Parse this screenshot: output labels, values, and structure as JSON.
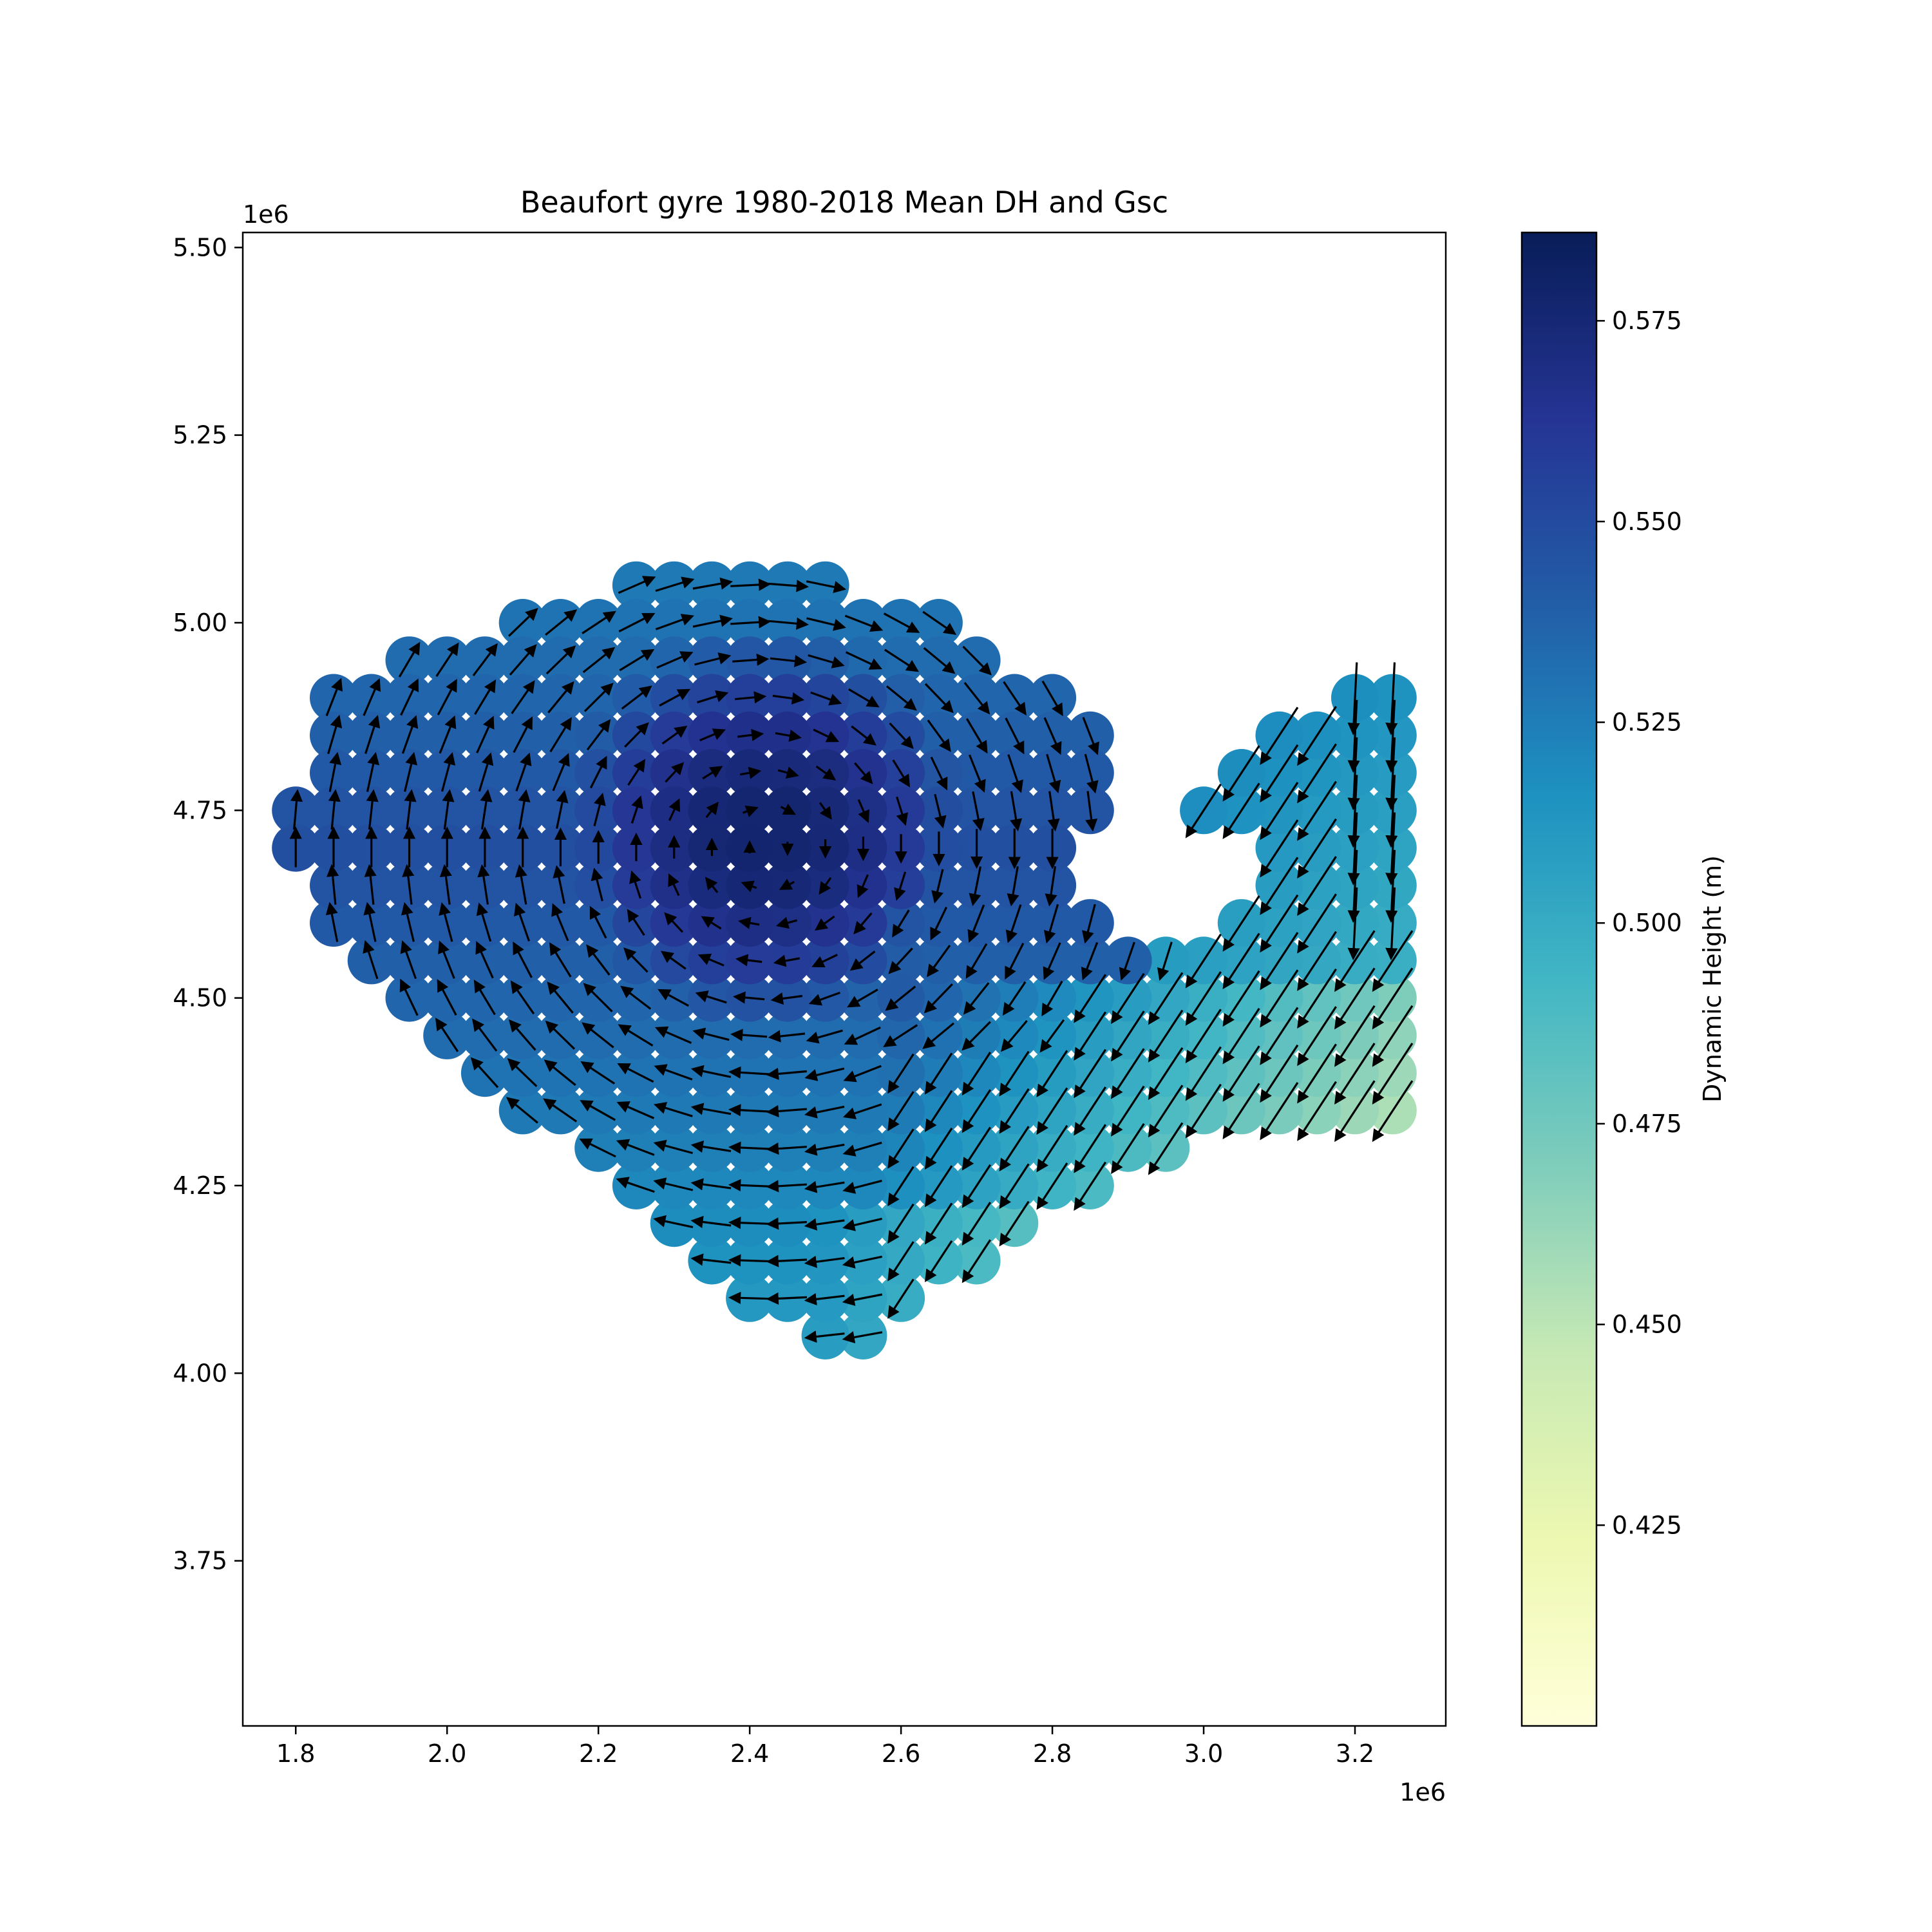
{
  "chart_data": {
    "type": "scatter",
    "title": "Beaufort gyre 1980-2018 Mean DH and Gsc",
    "xlabel": "",
    "ylabel": "",
    "x_offset_label": "1e6",
    "y_offset_label": "1e6",
    "xlim": [
      1.73,
      3.32
    ],
    "ylim": [
      3.53,
      5.52
    ],
    "x_ticks": [
      1.8,
      2.0,
      2.2,
      2.4,
      2.6,
      2.8,
      3.0,
      3.2
    ],
    "x_tick_labels": [
      "1.8",
      "2.0",
      "2.2",
      "2.4",
      "2.6",
      "2.8",
      "3.0",
      "3.2"
    ],
    "y_ticks": [
      3.75,
      4.0,
      4.25,
      4.5,
      4.75,
      5.0,
      5.25,
      5.5
    ],
    "y_tick_labels": [
      "3.75",
      "4.00",
      "4.25",
      "4.50",
      "4.75",
      "5.00",
      "5.25",
      "5.50"
    ],
    "grid": false,
    "colorbar": {
      "label": "Dynamic Height (m)",
      "range": [
        0.4,
        0.586
      ],
      "ticks": [
        0.425,
        0.45,
        0.475,
        0.5,
        0.525,
        0.55,
        0.575
      ],
      "tick_labels": [
        "0.425",
        "0.450",
        "0.475",
        "0.500",
        "0.525",
        "0.550",
        "0.575"
      ],
      "colormap": "YlGnBu",
      "stops": [
        "#ffffd9",
        "#edf8b1",
        "#c7e9b4",
        "#7fcdbb",
        "#41b6c4",
        "#1d91c0",
        "#225ea8",
        "#253494",
        "#081d58"
      ]
    },
    "points_description": "Circles show mean dynamic height (m) at grid points; arrows show mean geostrophic current (Gsc) direction and magnitude.",
    "series": [
      {
        "x": [
          2.25,
          2.3,
          2.35,
          2.4,
          2.45,
          2.5,
          2.1,
          2.15,
          2.2,
          2.25,
          2.3,
          2.35,
          2.4,
          2.45,
          2.5,
          2.55,
          2.6,
          2.65,
          1.95,
          2.0,
          2.05,
          2.1,
          2.15,
          2.2,
          2.25,
          2.3,
          2.35,
          2.4,
          2.45,
          2.5,
          2.55,
          2.6,
          2.65,
          2.7,
          1.85,
          1.9,
          1.95,
          2.0,
          2.05,
          2.1,
          2.15,
          2.2,
          2.25,
          2.3,
          2.35,
          2.4,
          2.45,
          2.5,
          2.55,
          2.6,
          2.65,
          2.7,
          2.75,
          2.8,
          3.2,
          3.25,
          1.85,
          1.9,
          1.95,
          2.0,
          2.05,
          2.1,
          2.15,
          2.2,
          2.25,
          2.3,
          2.35,
          2.4,
          2.45,
          2.5,
          2.55,
          2.6,
          2.65,
          2.7,
          2.75,
          2.8,
          2.85,
          3.1,
          3.15,
          3.2,
          3.25,
          1.85,
          1.9,
          1.95,
          2.0,
          2.05,
          2.1,
          2.15,
          2.2,
          2.25,
          2.3,
          2.35,
          2.4,
          2.45,
          2.5,
          2.55,
          2.6,
          2.65,
          2.7,
          2.75,
          2.8,
          2.85,
          3.05,
          3.1,
          3.15,
          3.2,
          3.25,
          1.8,
          1.85,
          1.9,
          1.95,
          2.0,
          2.05,
          2.1,
          2.15,
          2.2,
          2.25,
          2.3,
          2.35,
          2.4,
          2.45,
          2.5,
          2.55,
          2.6,
          2.65,
          2.7,
          2.75,
          2.8,
          2.85,
          3.0,
          3.05,
          3.1,
          3.15,
          3.2,
          3.25,
          1.8,
          1.85,
          1.9,
          1.95,
          2.0,
          2.05,
          2.1,
          2.15,
          2.2,
          2.25,
          2.3,
          2.35,
          2.4,
          2.45,
          2.5,
          2.55,
          2.6,
          2.65,
          2.7,
          2.75,
          2.8,
          3.1,
          3.15,
          3.2,
          3.25,
          1.85,
          1.9,
          1.95,
          2.0,
          2.05,
          2.1,
          2.15,
          2.2,
          2.25,
          2.3,
          2.35,
          2.4,
          2.45,
          2.5,
          2.55,
          2.6,
          2.65,
          2.7,
          2.75,
          2.8,
          3.1,
          3.15,
          3.2,
          3.25,
          1.85,
          1.9,
          1.95,
          2.0,
          2.05,
          2.1,
          2.15,
          2.2,
          2.25,
          2.3,
          2.35,
          2.4,
          2.45,
          2.5,
          2.55,
          2.6,
          2.65,
          2.7,
          2.75,
          2.8,
          2.85,
          3.05,
          3.1,
          3.15,
          3.2,
          3.25,
          1.9,
          1.95,
          2.0,
          2.05,
          2.1,
          2.15,
          2.2,
          2.25,
          2.3,
          2.35,
          2.4,
          2.45,
          2.5,
          2.55,
          2.6,
          2.65,
          2.7,
          2.75,
          2.8,
          2.85,
          2.9,
          2.95,
          3.0,
          3.05,
          3.1,
          3.15,
          3.2,
          3.25,
          1.95,
          2.0,
          2.05,
          2.1,
          2.15,
          2.2,
          2.25,
          2.3,
          2.35,
          2.4,
          2.45,
          2.5,
          2.55,
          2.6,
          2.65,
          2.7,
          2.75,
          2.8,
          2.85,
          2.9,
          2.95,
          3.0,
          3.05,
          3.1,
          3.15,
          3.2,
          3.25,
          2.0,
          2.05,
          2.1,
          2.15,
          2.2,
          2.25,
          2.3,
          2.35,
          2.4,
          2.45,
          2.5,
          2.55,
          2.6,
          2.65,
          2.7,
          2.75,
          2.8,
          2.85,
          2.9,
          2.95,
          3.0,
          3.05,
          3.1,
          3.15,
          3.2,
          3.25,
          2.05,
          2.1,
          2.15,
          2.2,
          2.25,
          2.3,
          2.35,
          2.4,
          2.45,
          2.5,
          2.55,
          2.6,
          2.65,
          2.7,
          2.75,
          2.8,
          2.85,
          2.9,
          2.95,
          3.0,
          3.05,
          3.1,
          3.15,
          3.2,
          3.25,
          2.1,
          2.15,
          2.2,
          2.25,
          2.3,
          2.35,
          2.4,
          2.45,
          2.5,
          2.55,
          2.6,
          2.65,
          2.7,
          2.75,
          2.8,
          2.85,
          2.9,
          2.95,
          3.0,
          3.05,
          3.1,
          3.15,
          3.2,
          3.25,
          2.2,
          2.25,
          2.3,
          2.35,
          2.4,
          2.45,
          2.5,
          2.55,
          2.6,
          2.65,
          2.7,
          2.75,
          2.8,
          2.85,
          2.9,
          2.95,
          2.25,
          2.3,
          2.35,
          2.4,
          2.45,
          2.5,
          2.55,
          2.6,
          2.65,
          2.7,
          2.75,
          2.8,
          2.85,
          2.3,
          2.35,
          2.4,
          2.45,
          2.5,
          2.55,
          2.6,
          2.65,
          2.7,
          2.75,
          2.35,
          2.4,
          2.45,
          2.5,
          2.55,
          2.6,
          2.65,
          2.7,
          2.4,
          2.45,
          2.5,
          2.55,
          2.6,
          2.5,
          2.55
        ],
        "y": [
          5.05,
          5.05,
          5.05,
          5.05,
          5.05,
          5.05,
          5.0,
          5.0,
          5.0,
          5.0,
          5.0,
          5.0,
          5.0,
          5.0,
          5.0,
          5.0,
          5.0,
          5.0,
          4.95,
          4.95,
          4.95,
          4.95,
          4.95,
          4.95,
          4.95,
          4.95,
          4.95,
          4.95,
          4.95,
          4.95,
          4.95,
          4.95,
          4.95,
          4.95,
          4.9,
          4.9,
          4.9,
          4.9,
          4.9,
          4.9,
          4.9,
          4.9,
          4.9,
          4.9,
          4.9,
          4.9,
          4.9,
          4.9,
          4.9,
          4.9,
          4.9,
          4.9,
          4.9,
          4.9,
          4.9,
          4.9,
          4.85,
          4.85,
          4.85,
          4.85,
          4.85,
          4.85,
          4.85,
          4.85,
          4.85,
          4.85,
          4.85,
          4.85,
          4.85,
          4.85,
          4.85,
          4.85,
          4.85,
          4.85,
          4.85,
          4.85,
          4.85,
          4.85,
          4.85,
          4.85,
          4.85,
          4.8,
          4.8,
          4.8,
          4.8,
          4.8,
          4.8,
          4.8,
          4.8,
          4.8,
          4.8,
          4.8,
          4.8,
          4.8,
          4.8,
          4.8,
          4.8,
          4.8,
          4.8,
          4.8,
          4.8,
          4.8,
          4.8,
          4.8,
          4.8,
          4.8,
          4.8,
          4.75,
          4.75,
          4.75,
          4.75,
          4.75,
          4.75,
          4.75,
          4.75,
          4.75,
          4.75,
          4.75,
          4.75,
          4.75,
          4.75,
          4.75,
          4.75,
          4.75,
          4.75,
          4.75,
          4.75,
          4.75,
          4.75,
          4.75,
          4.75,
          4.75,
          4.75,
          4.75,
          4.75,
          4.7,
          4.7,
          4.7,
          4.7,
          4.7,
          4.7,
          4.7,
          4.7,
          4.7,
          4.7,
          4.7,
          4.7,
          4.7,
          4.7,
          4.7,
          4.7,
          4.7,
          4.7,
          4.7,
          4.7,
          4.7,
          4.7,
          4.7,
          4.7,
          4.7,
          4.65,
          4.65,
          4.65,
          4.65,
          4.65,
          4.65,
          4.65,
          4.65,
          4.65,
          4.65,
          4.65,
          4.65,
          4.65,
          4.65,
          4.65,
          4.65,
          4.65,
          4.65,
          4.65,
          4.65,
          4.65,
          4.65,
          4.65,
          4.65,
          4.6,
          4.6,
          4.6,
          4.6,
          4.6,
          4.6,
          4.6,
          4.6,
          4.6,
          4.6,
          4.6,
          4.6,
          4.6,
          4.6,
          4.6,
          4.6,
          4.6,
          4.6,
          4.6,
          4.6,
          4.6,
          4.6,
          4.6,
          4.6,
          4.6,
          4.6,
          4.55,
          4.55,
          4.55,
          4.55,
          4.55,
          4.55,
          4.55,
          4.55,
          4.55,
          4.55,
          4.55,
          4.55,
          4.55,
          4.55,
          4.55,
          4.55,
          4.55,
          4.55,
          4.55,
          4.55,
          4.55,
          4.55,
          4.55,
          4.55,
          4.55,
          4.55,
          4.55,
          4.55,
          4.5,
          4.5,
          4.5,
          4.5,
          4.5,
          4.5,
          4.5,
          4.5,
          4.5,
          4.5,
          4.5,
          4.5,
          4.5,
          4.5,
          4.5,
          4.5,
          4.5,
          4.5,
          4.5,
          4.5,
          4.5,
          4.5,
          4.5,
          4.5,
          4.5,
          4.5,
          4.5,
          4.45,
          4.45,
          4.45,
          4.45,
          4.45,
          4.45,
          4.45,
          4.45,
          4.45,
          4.45,
          4.45,
          4.45,
          4.45,
          4.45,
          4.45,
          4.45,
          4.45,
          4.45,
          4.45,
          4.45,
          4.45,
          4.45,
          4.45,
          4.45,
          4.45,
          4.45,
          4.4,
          4.4,
          4.4,
          4.4,
          4.4,
          4.4,
          4.4,
          4.4,
          4.4,
          4.4,
          4.4,
          4.4,
          4.4,
          4.4,
          4.4,
          4.4,
          4.4,
          4.4,
          4.4,
          4.4,
          4.4,
          4.4,
          4.4,
          4.4,
          4.4,
          4.35,
          4.35,
          4.35,
          4.35,
          4.35,
          4.35,
          4.35,
          4.35,
          4.35,
          4.35,
          4.35,
          4.35,
          4.35,
          4.35,
          4.35,
          4.35,
          4.35,
          4.35,
          4.35,
          4.35,
          4.35,
          4.35,
          4.35,
          4.35,
          4.3,
          4.3,
          4.3,
          4.3,
          4.3,
          4.3,
          4.3,
          4.3,
          4.3,
          4.3,
          4.3,
          4.3,
          4.3,
          4.3,
          4.3,
          4.3,
          4.25,
          4.25,
          4.25,
          4.25,
          4.25,
          4.25,
          4.25,
          4.25,
          4.25,
          4.25,
          4.25,
          4.25,
          4.25,
          4.2,
          4.2,
          4.2,
          4.2,
          4.2,
          4.2,
          4.2,
          4.2,
          4.2,
          4.2,
          4.15,
          4.15,
          4.15,
          4.15,
          4.15,
          4.15,
          4.15,
          4.15,
          4.1,
          4.1,
          4.1,
          4.1,
          4.1,
          4.05,
          4.05
        ]
      }
    ]
  }
}
